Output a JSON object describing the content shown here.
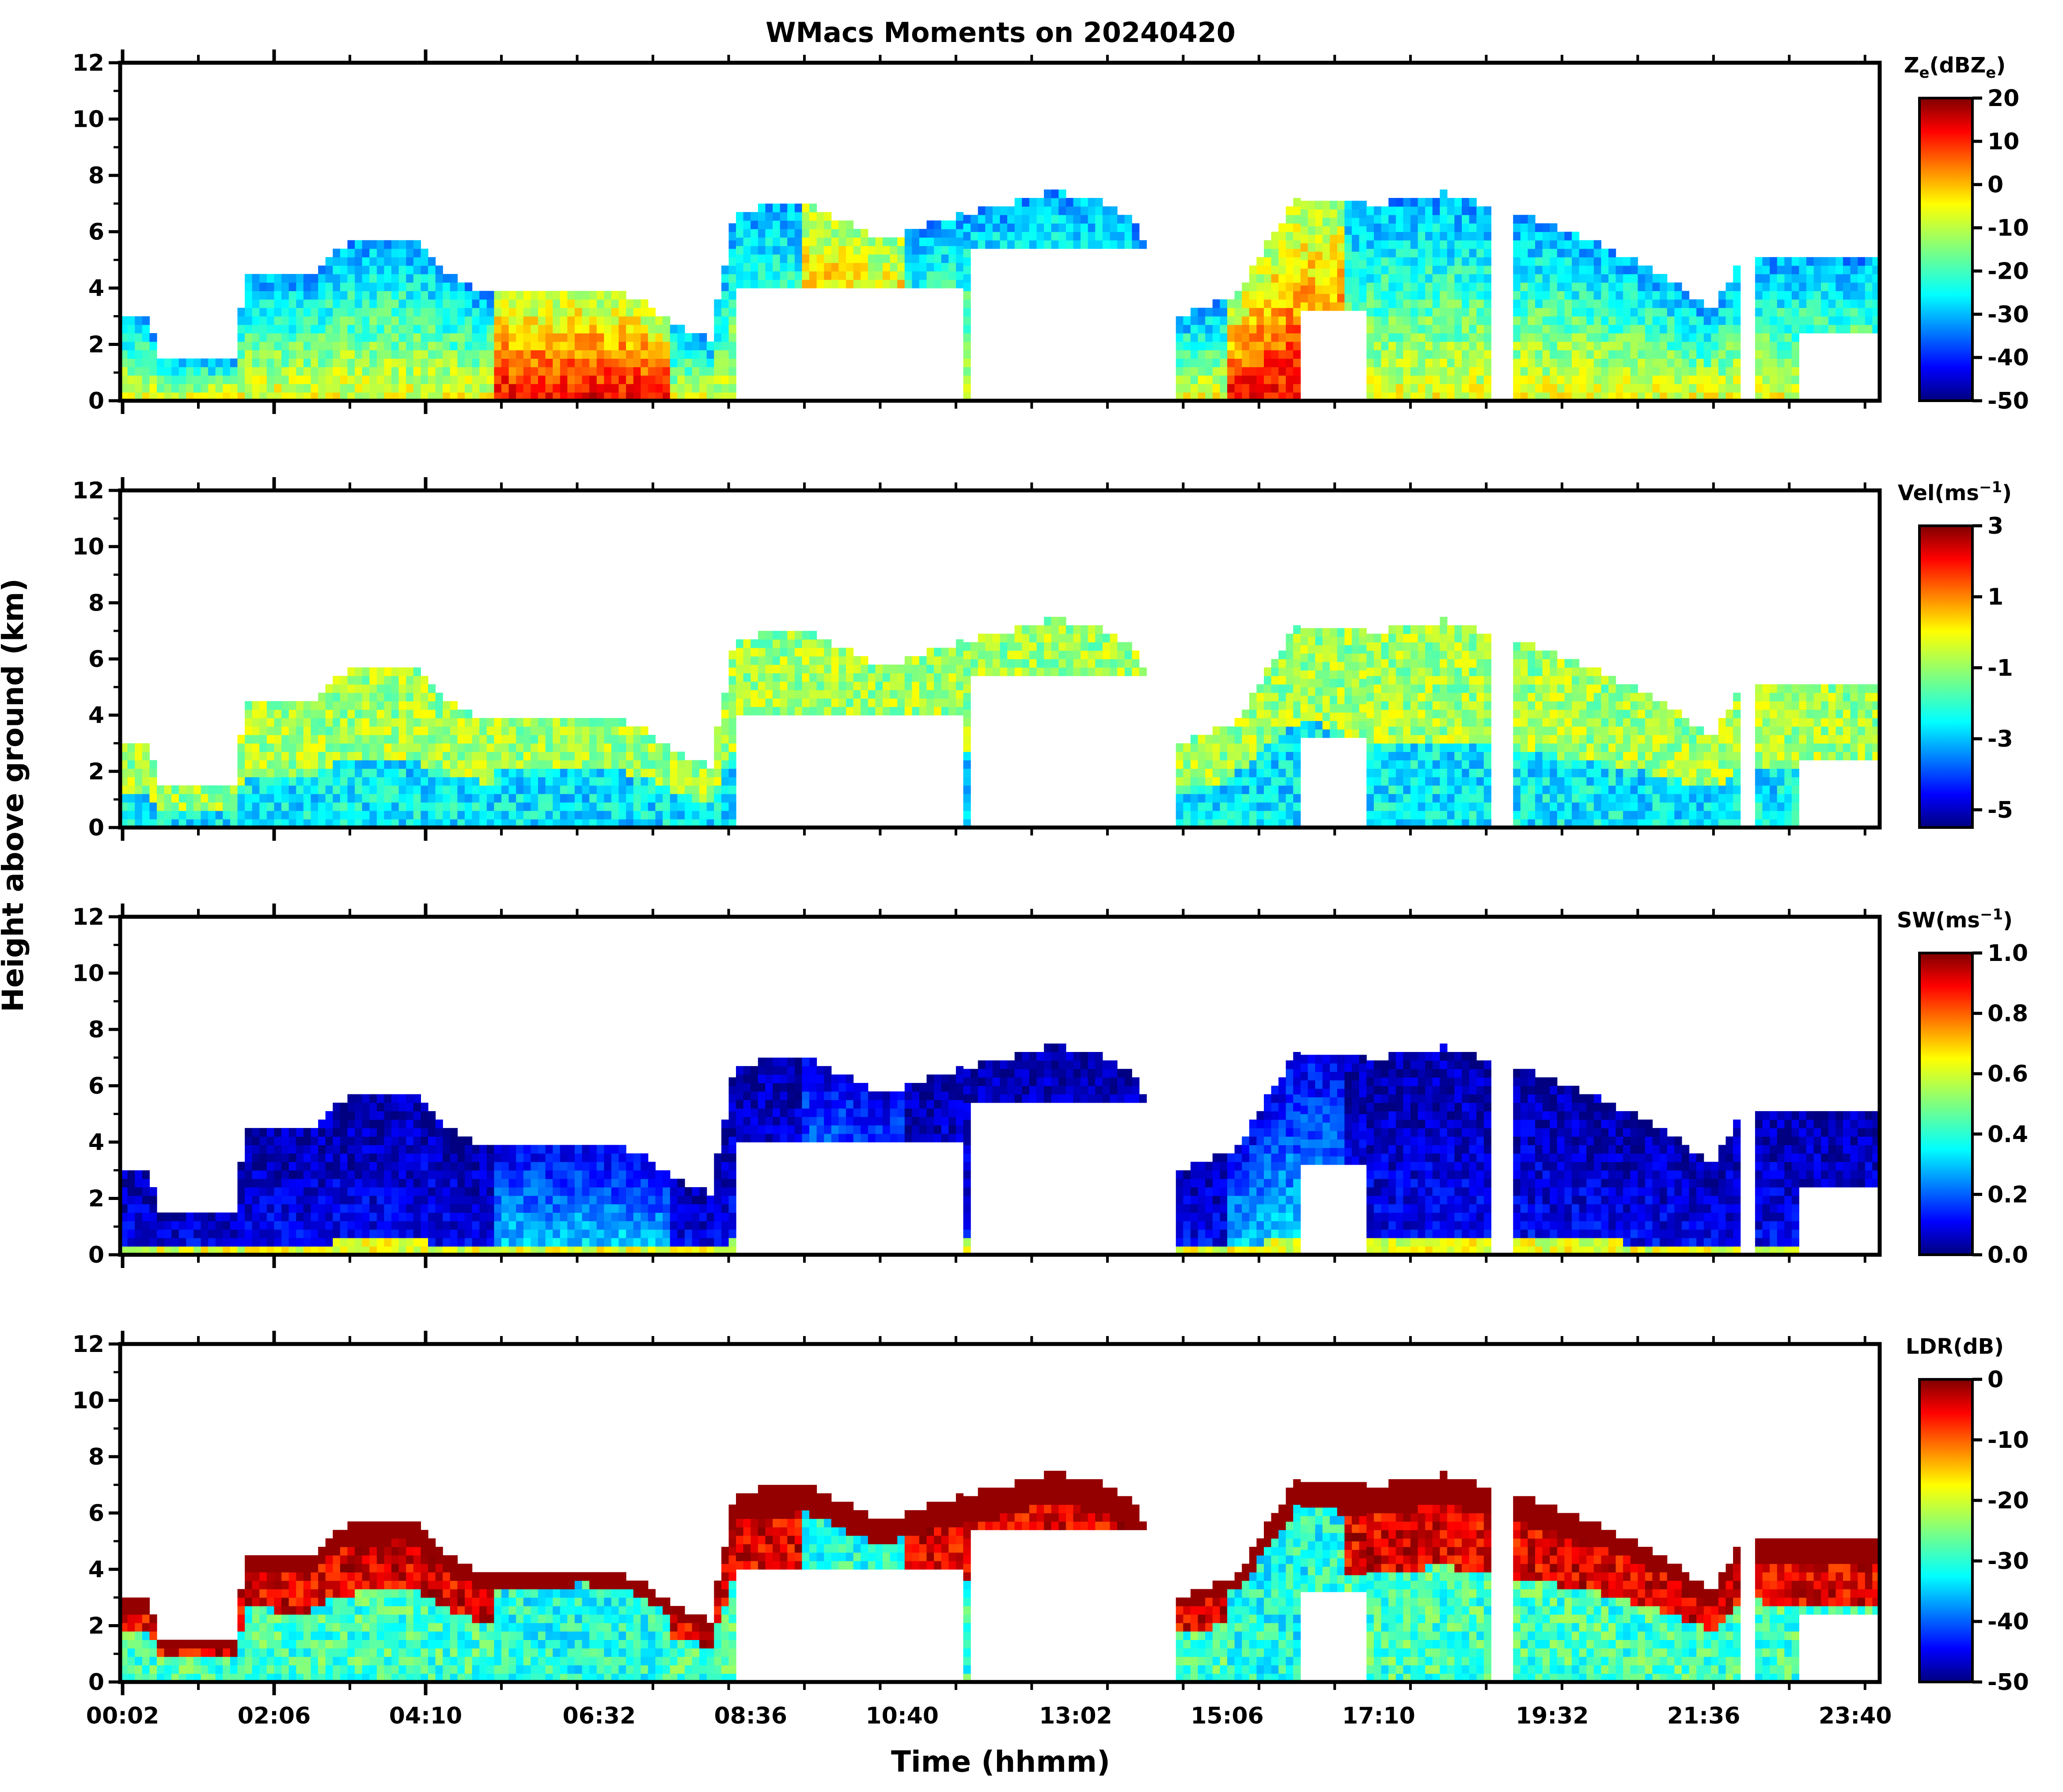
{
  "figure": {
    "title": "WMacs Moments on 20240420",
    "xlabel": "Time (hhmm)",
    "ylabel": "Height above ground (km)"
  },
  "chart_data": [
    {
      "type": "heatmap",
      "name": "reflectivity",
      "cbar_label_main": "Z",
      "cbar_label_sub": "e",
      "cbar_label_rest": "(dBZ",
      "cbar_label_end": ")",
      "clim": [
        -50,
        20
      ],
      "cbar_ticks": [
        "20",
        "10",
        "0",
        "-10",
        "-20",
        "-30",
        "-40",
        "-50"
      ],
      "cbar_tick_values": [
        20,
        10,
        0,
        -10,
        -20,
        -30,
        -40,
        -50
      ],
      "ylim": [
        0,
        12
      ],
      "yticks": [
        "0",
        "2",
        "4",
        "6",
        "8",
        "10",
        "12"
      ],
      "xticks": []
    },
    {
      "type": "heatmap",
      "name": "velocity",
      "cbar_label_main": "Vel(ms",
      "cbar_label_sup": "−1",
      "cbar_label_end": ")",
      "clim": [
        -5.5,
        3
      ],
      "cbar_ticks": [
        "3",
        "1",
        "-1",
        "-3",
        "-5"
      ],
      "cbar_tick_values": [
        3,
        1,
        -1,
        -3,
        -5
      ],
      "ylim": [
        0,
        12
      ],
      "yticks": [
        "0",
        "2",
        "4",
        "6",
        "8",
        "10",
        "12"
      ],
      "xticks": []
    },
    {
      "type": "heatmap",
      "name": "spectrum_width",
      "cbar_label_main": "SW(ms",
      "cbar_label_sup": "−1",
      "cbar_label_end": ")",
      "clim": [
        0,
        1
      ],
      "cbar_ticks": [
        "1.0",
        "0.8",
        "0.6",
        "0.4",
        "0.2",
        "0.0"
      ],
      "cbar_tick_values": [
        1.0,
        0.8,
        0.6,
        0.4,
        0.2,
        0.0
      ],
      "ylim": [
        0,
        12
      ],
      "yticks": [
        "0",
        "2",
        "4",
        "6",
        "8",
        "10",
        "12"
      ],
      "xticks": []
    },
    {
      "type": "heatmap",
      "name": "ldr",
      "cbar_label_main": "LDR(dB)",
      "clim": [
        -50,
        0
      ],
      "cbar_ticks": [
        "0",
        "-10",
        "-20",
        "-30",
        "-40",
        "-50"
      ],
      "cbar_tick_values": [
        0,
        -10,
        -20,
        -30,
        -40,
        -50
      ],
      "ylim": [
        0,
        12
      ],
      "yticks": [
        "0",
        "2",
        "4",
        "6",
        "8",
        "10",
        "12"
      ],
      "xticks": [
        "00:02",
        "02:06",
        "04:10",
        "06:32",
        "08:36",
        "10:40",
        "13:02",
        "15:06",
        "17:10",
        "19:32",
        "21:36",
        "23:40"
      ]
    }
  ],
  "time_axis": {
    "xlim_minutes": [
      0,
      1440
    ],
    "tick_minutes": [
      2,
      126,
      250,
      392,
      516,
      640,
      782,
      906,
      1030,
      1172,
      1296,
      1420
    ]
  },
  "colors": {
    "jet_dark_blue": "#00007f",
    "jet_blue": "#0000ff",
    "jet_cyan": "#00ffff",
    "jet_yellow": "#ffff00",
    "jet_red": "#ff0000",
    "jet_dark_red": "#7f0000"
  }
}
